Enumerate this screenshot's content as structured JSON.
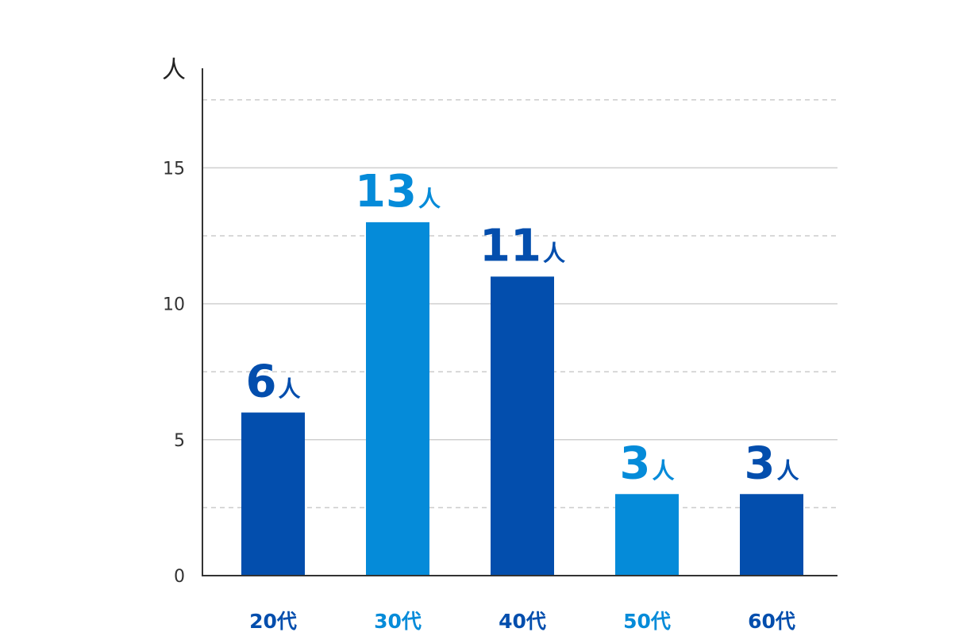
{
  "chart_data": {
    "type": "bar",
    "y_unit": "人",
    "categories": [
      "20代",
      "30代",
      "40代",
      "50代",
      "60代"
    ],
    "values": [
      6,
      13,
      11,
      3,
      3
    ],
    "value_labels": [
      {
        "number": "6",
        "unit": "人"
      },
      {
        "number": "13",
        "unit": "人"
      },
      {
        "number": "11",
        "unit": "人"
      },
      {
        "number": "3",
        "unit": "人"
      },
      {
        "number": "3",
        "unit": "人"
      }
    ],
    "bar_colors": [
      "#034ead",
      "#058bd9",
      "#034ead",
      "#058bd9",
      "#034ead"
    ],
    "yticks": [
      0,
      5,
      10,
      15
    ],
    "ytick_labels": [
      "0",
      "5",
      "10",
      "15"
    ],
    "minor_gridlines": [
      2.5,
      7.5,
      12.5,
      17.5
    ],
    "ylim": [
      0,
      18.75
    ],
    "grid": true,
    "legend": "none"
  }
}
